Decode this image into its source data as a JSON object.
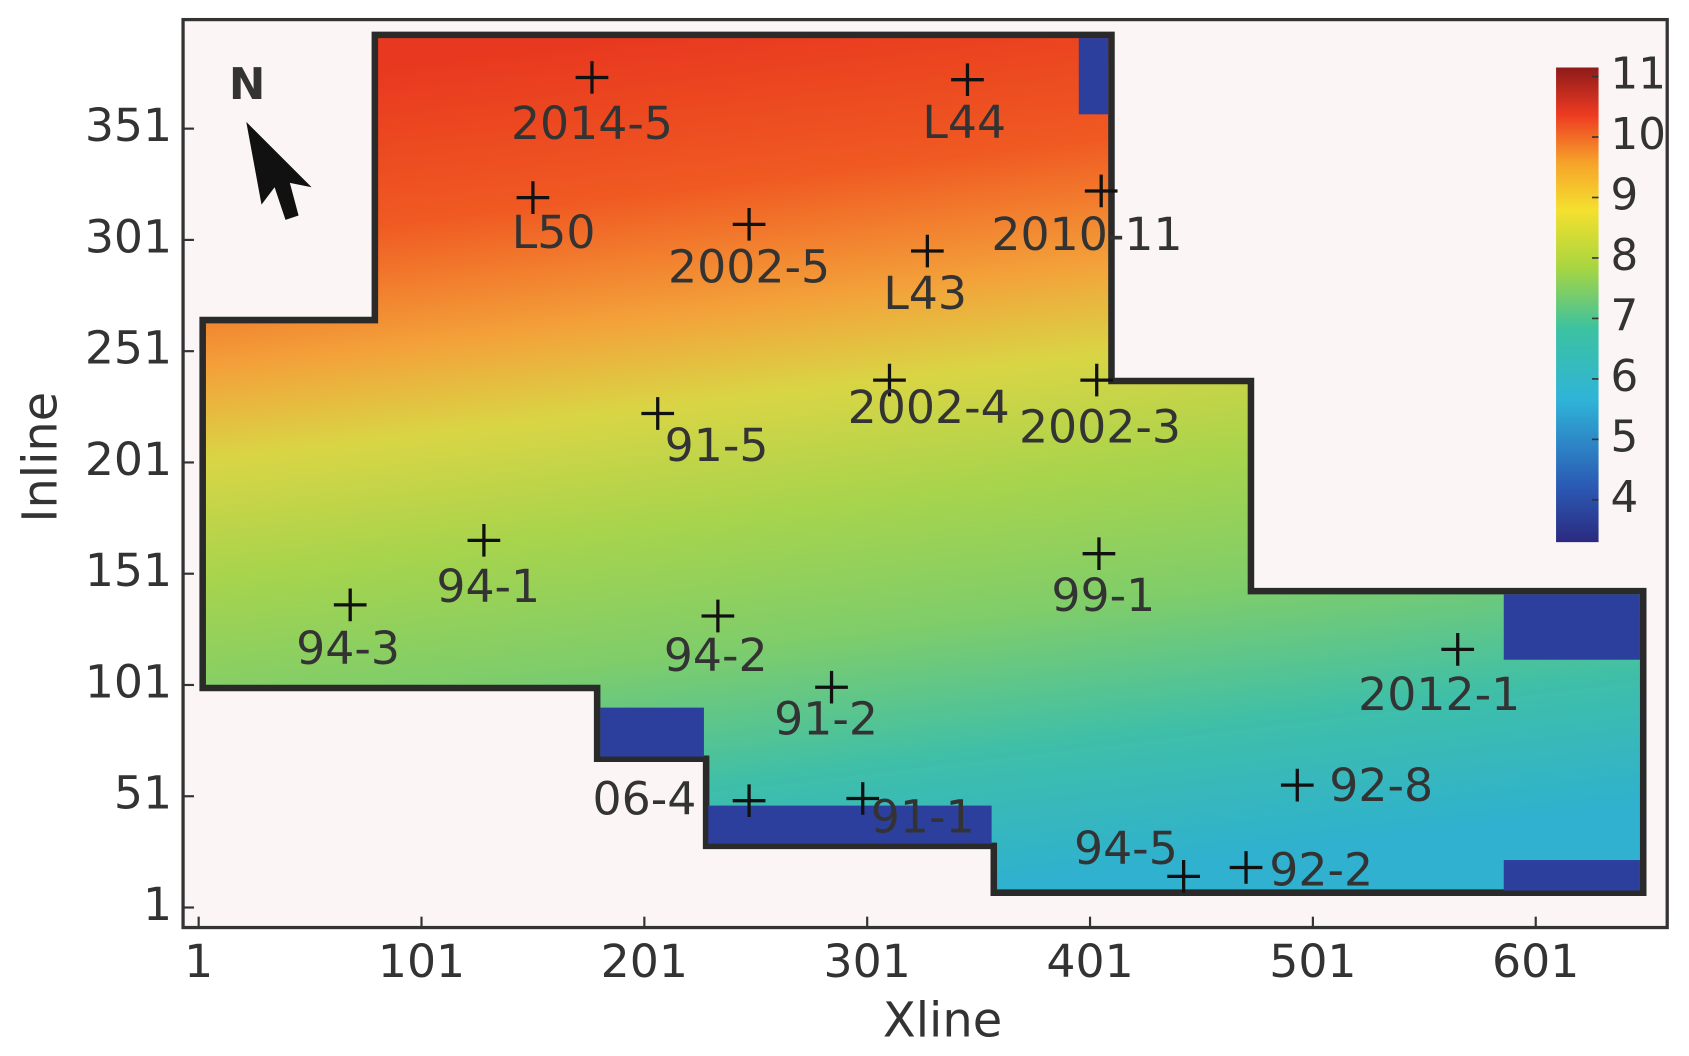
{
  "chart_data": {
    "type": "scatter",
    "xlabel": "Xline",
    "ylabel": "Inline",
    "north_label": "N",
    "xlim": [
      -6,
      660
    ],
    "ylim": [
      -8,
      400
    ],
    "xticks": [
      1,
      101,
      201,
      301,
      401,
      501,
      601
    ],
    "yticks": [
      1,
      51,
      101,
      151,
      201,
      251,
      301,
      351
    ],
    "labels": [
      "2014-5",
      "L44",
      "L50",
      "2002-5",
      "L43",
      "2010-11",
      "2002-4",
      "2002-3",
      "91-5",
      "94-1",
      "99-1",
      "94-3",
      "94-2",
      "2012-1",
      "91-2",
      "92-8",
      "06-4",
      "91-1",
      "94-5",
      "92-2"
    ],
    "x": [
      177.5,
      346,
      151,
      248,
      328,
      406,
      311,
      404,
      207,
      129,
      405,
      69,
      234,
      566,
      285,
      494,
      248,
      299,
      443,
      471
    ],
    "y": [
      374,
      373,
      320,
      308,
      296,
      323,
      238,
      238,
      223,
      166,
      160,
      137,
      132,
      117,
      100,
      56,
      49,
      50,
      15,
      19
    ],
    "colorbar": {
      "lim": [
        3.3,
        11.15
      ],
      "ticks": [
        4,
        5,
        6,
        7,
        8,
        9,
        10,
        11
      ]
    }
  }
}
